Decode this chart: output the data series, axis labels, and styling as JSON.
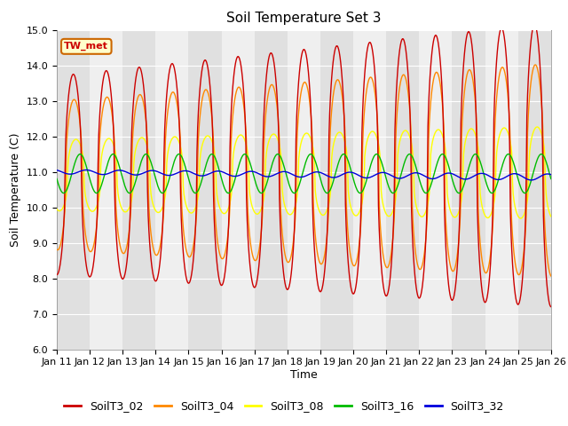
{
  "title": "Soil Temperature Set 3",
  "xlabel": "Time",
  "ylabel": "Soil Temperature (C)",
  "ylim": [
    6.0,
    15.0
  ],
  "yticks": [
    6.0,
    7.0,
    8.0,
    9.0,
    10.0,
    11.0,
    12.0,
    13.0,
    14.0,
    15.0
  ],
  "xtick_labels": [
    "Jan 11",
    "Jan 12",
    "Jan 13",
    "Jan 14",
    "Jan 15",
    "Jan 16",
    "Jan 17",
    "Jan 18",
    "Jan 19",
    "Jan 20",
    "Jan 21",
    "Jan 22",
    "Jan 23",
    "Jan 24",
    "Jan 25",
    "Jan 26"
  ],
  "legend_labels": [
    "SoilT3_02",
    "SoilT3_04",
    "SoilT3_08",
    "SoilT3_16",
    "SoilT3_32"
  ],
  "line_colors": [
    "#cc0000",
    "#ff8800",
    "#ffff00",
    "#00bb00",
    "#0000dd"
  ],
  "tw_met_label": "TW_met",
  "bg_band_color": "#e0e0e0",
  "bg_base_color": "#efefef",
  "title_fontsize": 11,
  "axis_label_fontsize": 9,
  "tick_fontsize": 8,
  "legend_fontsize": 9
}
